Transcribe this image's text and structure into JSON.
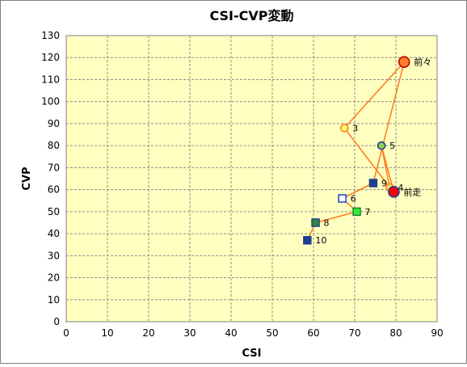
{
  "chart_data": {
    "type": "scatter",
    "title": "CSI-CVP変動",
    "xlabel": "CSI",
    "ylabel": "CVP",
    "xlim": [
      0,
      90
    ],
    "ylim": [
      0,
      130
    ],
    "xticks": [
      0,
      10,
      20,
      30,
      40,
      50,
      60,
      70,
      80,
      90
    ],
    "yticks": [
      0,
      10,
      20,
      30,
      40,
      50,
      60,
      70,
      80,
      90,
      100,
      110,
      120,
      130
    ],
    "grid": true,
    "plot_background": "#ffffc0",
    "line_color": "#ff7f27",
    "points": [
      {
        "label": "前々",
        "x": 82,
        "y": 118,
        "shape": "circle",
        "fill": "#ff7f27",
        "stroke": "#c00000",
        "size": "large"
      },
      {
        "label": "3",
        "x": 67.5,
        "y": 88,
        "shape": "circle",
        "fill": "#ffff66",
        "stroke": "#ff7f27",
        "size": "small"
      },
      {
        "label": "5",
        "x": 76.5,
        "y": 80,
        "shape": "circle",
        "fill": "#92d050",
        "stroke": "#1f3f8f",
        "size": "small"
      },
      {
        "label": "9",
        "x": 74.5,
        "y": 63,
        "shape": "square",
        "fill": "#1f3f8f",
        "stroke": "#1f3f8f",
        "size": "small"
      },
      {
        "label": "4",
        "x": 78.5,
        "y": 61,
        "shape": "circle",
        "fill": "#ffd966",
        "stroke": "#ff7f27",
        "size": "small"
      },
      {
        "label": "前走",
        "x": 79.5,
        "y": 59,
        "shape": "circle",
        "fill": "#ff0000",
        "stroke": "#1f3f8f",
        "size": "large"
      },
      {
        "label": "6",
        "x": 67,
        "y": 56,
        "shape": "square",
        "fill": "#ffffff",
        "stroke": "#1f3fcf",
        "size": "small"
      },
      {
        "label": "7",
        "x": 70.5,
        "y": 50,
        "shape": "square",
        "fill": "#33ee33",
        "stroke": "#1f7f3f",
        "size": "small"
      },
      {
        "label": "8",
        "x": 60.5,
        "y": 45,
        "shape": "square",
        "fill": "#2e8b2e",
        "stroke": "#1f3f8f",
        "size": "small"
      },
      {
        "label": "10",
        "x": 58.5,
        "y": 37,
        "shape": "square",
        "fill": "#1f3f8f",
        "stroke": "#1f3f8f",
        "size": "small"
      }
    ],
    "path_order": [
      "10",
      "8",
      "7",
      "6",
      "9",
      "前々",
      "3",
      "4",
      "5",
      "前走"
    ]
  }
}
